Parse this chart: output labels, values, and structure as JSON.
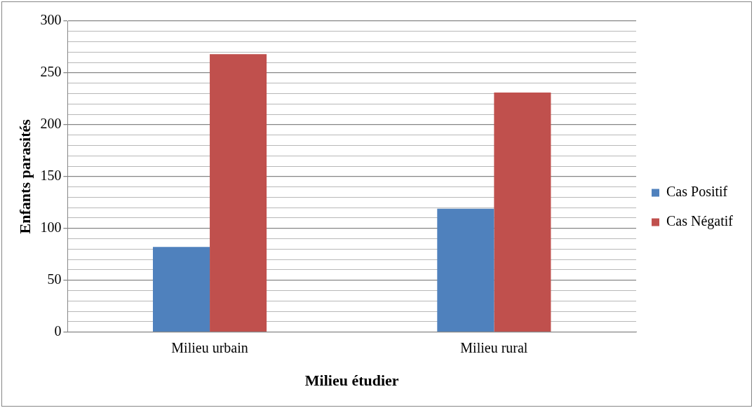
{
  "chart_data": {
    "type": "bar",
    "xlabel": "Milieu étudier",
    "ylabel": "Enfants parasités",
    "categories": [
      "Milieu urbain",
      "Milieu rural"
    ],
    "series": [
      {
        "name": "Cas Positif",
        "color": "#4f81bd",
        "values": [
          82,
          119
        ]
      },
      {
        "name": "Cas Négatif",
        "color": "#c0504d",
        "values": [
          268,
          231
        ]
      }
    ],
    "ylim": [
      0,
      300
    ],
    "yticks": [
      0,
      {
        "value": 10,
        "label": null
      },
      {
        "value": 20,
        "label": null
      },
      {
        "value": 30,
        "label": null
      },
      {
        "value": 40,
        "label": null
      },
      50,
      {
        "value": 60,
        "label": null
      },
      {
        "value": 70,
        "label": null
      },
      {
        "value": 80,
        "label": null
      },
      {
        "value": 90,
        "label": null
      },
      100,
      {
        "value": 110,
        "label": null
      },
      {
        "value": 120,
        "label": null
      },
      {
        "value": 130,
        "label": null
      },
      {
        "value": 140,
        "label": null
      },
      150,
      {
        "value": 160,
        "label": null
      },
      {
        "value": 170,
        "label": null
      },
      {
        "value": 180,
        "label": null
      },
      {
        "value": 190,
        "label": null
      },
      200,
      {
        "value": 210,
        "label": null
      },
      {
        "value": 220,
        "label": null
      },
      {
        "value": 230,
        "label": null
      },
      {
        "value": 240,
        "label": null
      },
      250,
      {
        "value": 260,
        "label": null
      },
      {
        "value": 270,
        "label": null
      },
      {
        "value": 280,
        "label": null
      },
      {
        "value": 290,
        "label": null
      },
      300
    ],
    "grid": "y",
    "legend": "right"
  }
}
